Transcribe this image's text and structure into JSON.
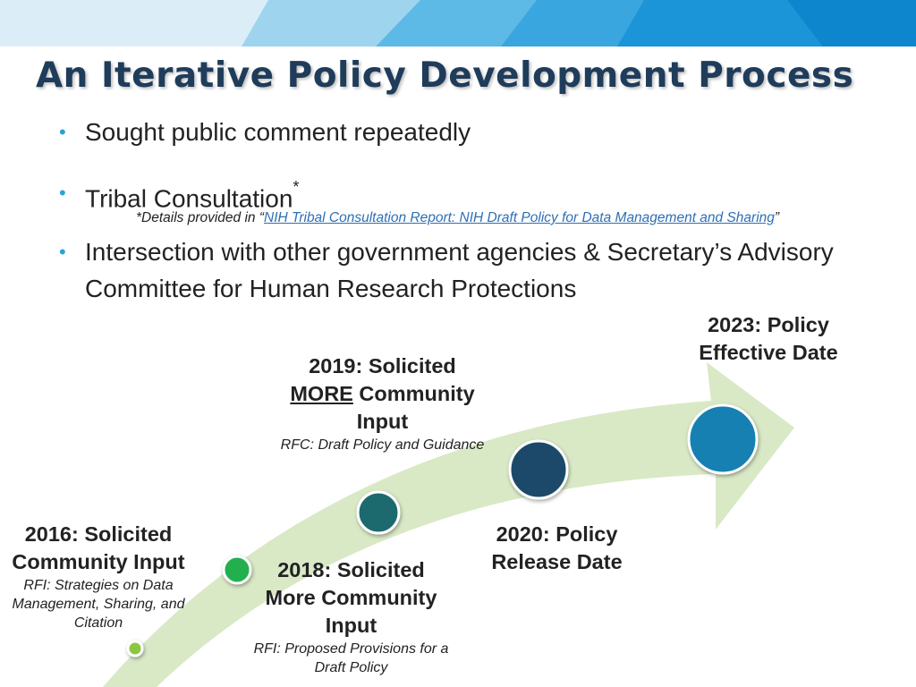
{
  "slide": {
    "title": "An Iterative Policy Development Process",
    "bullets": [
      {
        "text": "Sought public comment repeatedly"
      },
      {
        "text": "Tribal Consultation",
        "superscript": "*"
      },
      {
        "text": "Intersection with other government agencies & Secretary’s Advisory Committee for Human Research Protections"
      }
    ],
    "footnote": {
      "prefix": "*Details provided in “",
      "link_text": "NIH Tribal Consultation Report: NIH Draft Policy for Data Management and Sharing",
      "suffix": "”"
    }
  },
  "timeline": {
    "milestones": [
      {
        "id": "2016",
        "head": "2016: Solicited Community Input",
        "sub": "RFI: Strategies on Data Management, Sharing, and Citation",
        "color": "#8dc63f"
      },
      {
        "id": "2018",
        "head": "2018: Solicited More Community Input",
        "sub": "RFI: Proposed Provisions for a Draft Policy",
        "color": "#22b050"
      },
      {
        "id": "2019",
        "head_a": "2019: Solicited",
        "head_em": "MORE",
        "head_b": " Community Input",
        "sub": "RFC: Draft Policy and Guidance",
        "color": "#1a6a6e"
      },
      {
        "id": "2020",
        "head": "2020: Policy Release Date",
        "sub": "",
        "color": "#1b4a6b"
      },
      {
        "id": "2023",
        "head": "2023: Policy Effective Date",
        "sub": "",
        "color": "#1880b3"
      }
    ]
  },
  "colors": {
    "title": "#1f3c5a",
    "bullet_dot": "#2ba3d8",
    "arrow_fill": "#d9e9c6",
    "link": "#2e6fb5"
  }
}
